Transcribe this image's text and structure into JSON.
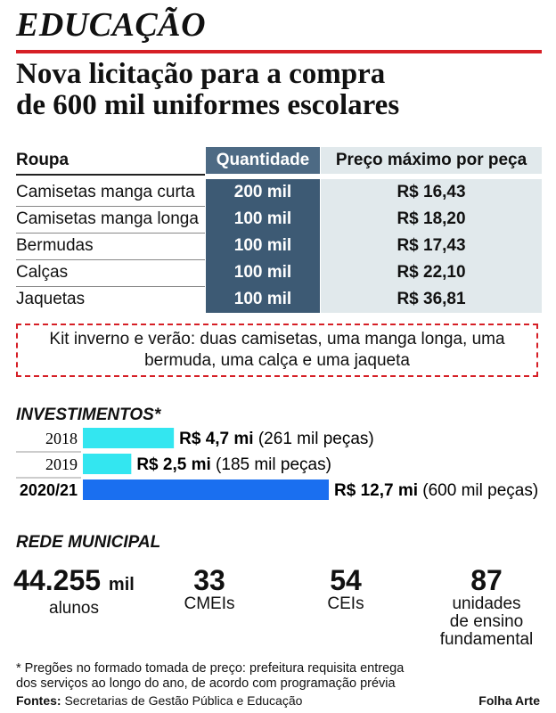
{
  "section_title": "EDUCAÇÃO",
  "headline_line1": "Nova licitação para a compra",
  "headline_line2": "de 600 mil uniformes escolares",
  "table": {
    "headers": [
      "Roupa",
      "Quantidade",
      "Preço máximo por peça"
    ],
    "rows": [
      [
        "Camisetas manga curta",
        "200 mil",
        "R$ 16,43"
      ],
      [
        "Camisetas manga longa",
        "100 mil",
        "R$ 18,20"
      ],
      [
        "Bermudas",
        "100 mil",
        "R$ 17,43"
      ],
      [
        "Calças",
        "100 mil",
        "R$ 22,10"
      ],
      [
        "Jaquetas",
        "100 mil",
        "R$ 36,81"
      ]
    ]
  },
  "kit_line1": "Kit inverno e verão: duas camisetas, uma manga longa, uma",
  "kit_line2": "bermuda, uma calça e uma jaqueta",
  "investments_title": "INVESTIMENTOS*",
  "network_title": "REDE MUNICIPAL",
  "stats": [
    {
      "value": "44.255",
      "unit": "mil",
      "label": [
        "alunos"
      ]
    },
    {
      "value": "33",
      "unit": "",
      "label": [
        "CMEIs"
      ]
    },
    {
      "value": "54",
      "unit": "",
      "label": [
        "CEIs"
      ]
    },
    {
      "value": "87",
      "unit": "",
      "label": [
        "unidades",
        "de ensino",
        "fundamental"
      ]
    }
  ],
  "footnote_line1": "* Pregões no formado tomada de preço: prefeitura requisita entrega",
  "footnote_line2": "dos serviços ao longo do ano, de acordo com programação prévia",
  "sources_label": "Fontes:",
  "sources_text": " Secretarias de Gestão Pública e Educação",
  "credit": "Folha Arte",
  "colors": {
    "accent_red": "#d61f26",
    "bar_light": "#33e6f0",
    "bar_dark": "#1a6ff0",
    "table_dark": "#3d5a74",
    "table_light": "#e1e9ec"
  },
  "chart_data": {
    "type": "bar",
    "orientation": "horizontal",
    "title": "INVESTIMENTOS*",
    "categories": [
      "2018",
      "2019",
      "2020/21"
    ],
    "values": [
      4.7,
      2.5,
      12.7
    ],
    "value_labels": [
      "R$ 4,7 mi",
      "R$ 2,5 mi",
      "R$ 12,7 mi"
    ],
    "annotations": [
      "(261 mil peças)",
      "(185 mil peças)",
      "(600 mil peças)"
    ],
    "unit": "R$ mi",
    "highlight_category": "2020/21"
  }
}
